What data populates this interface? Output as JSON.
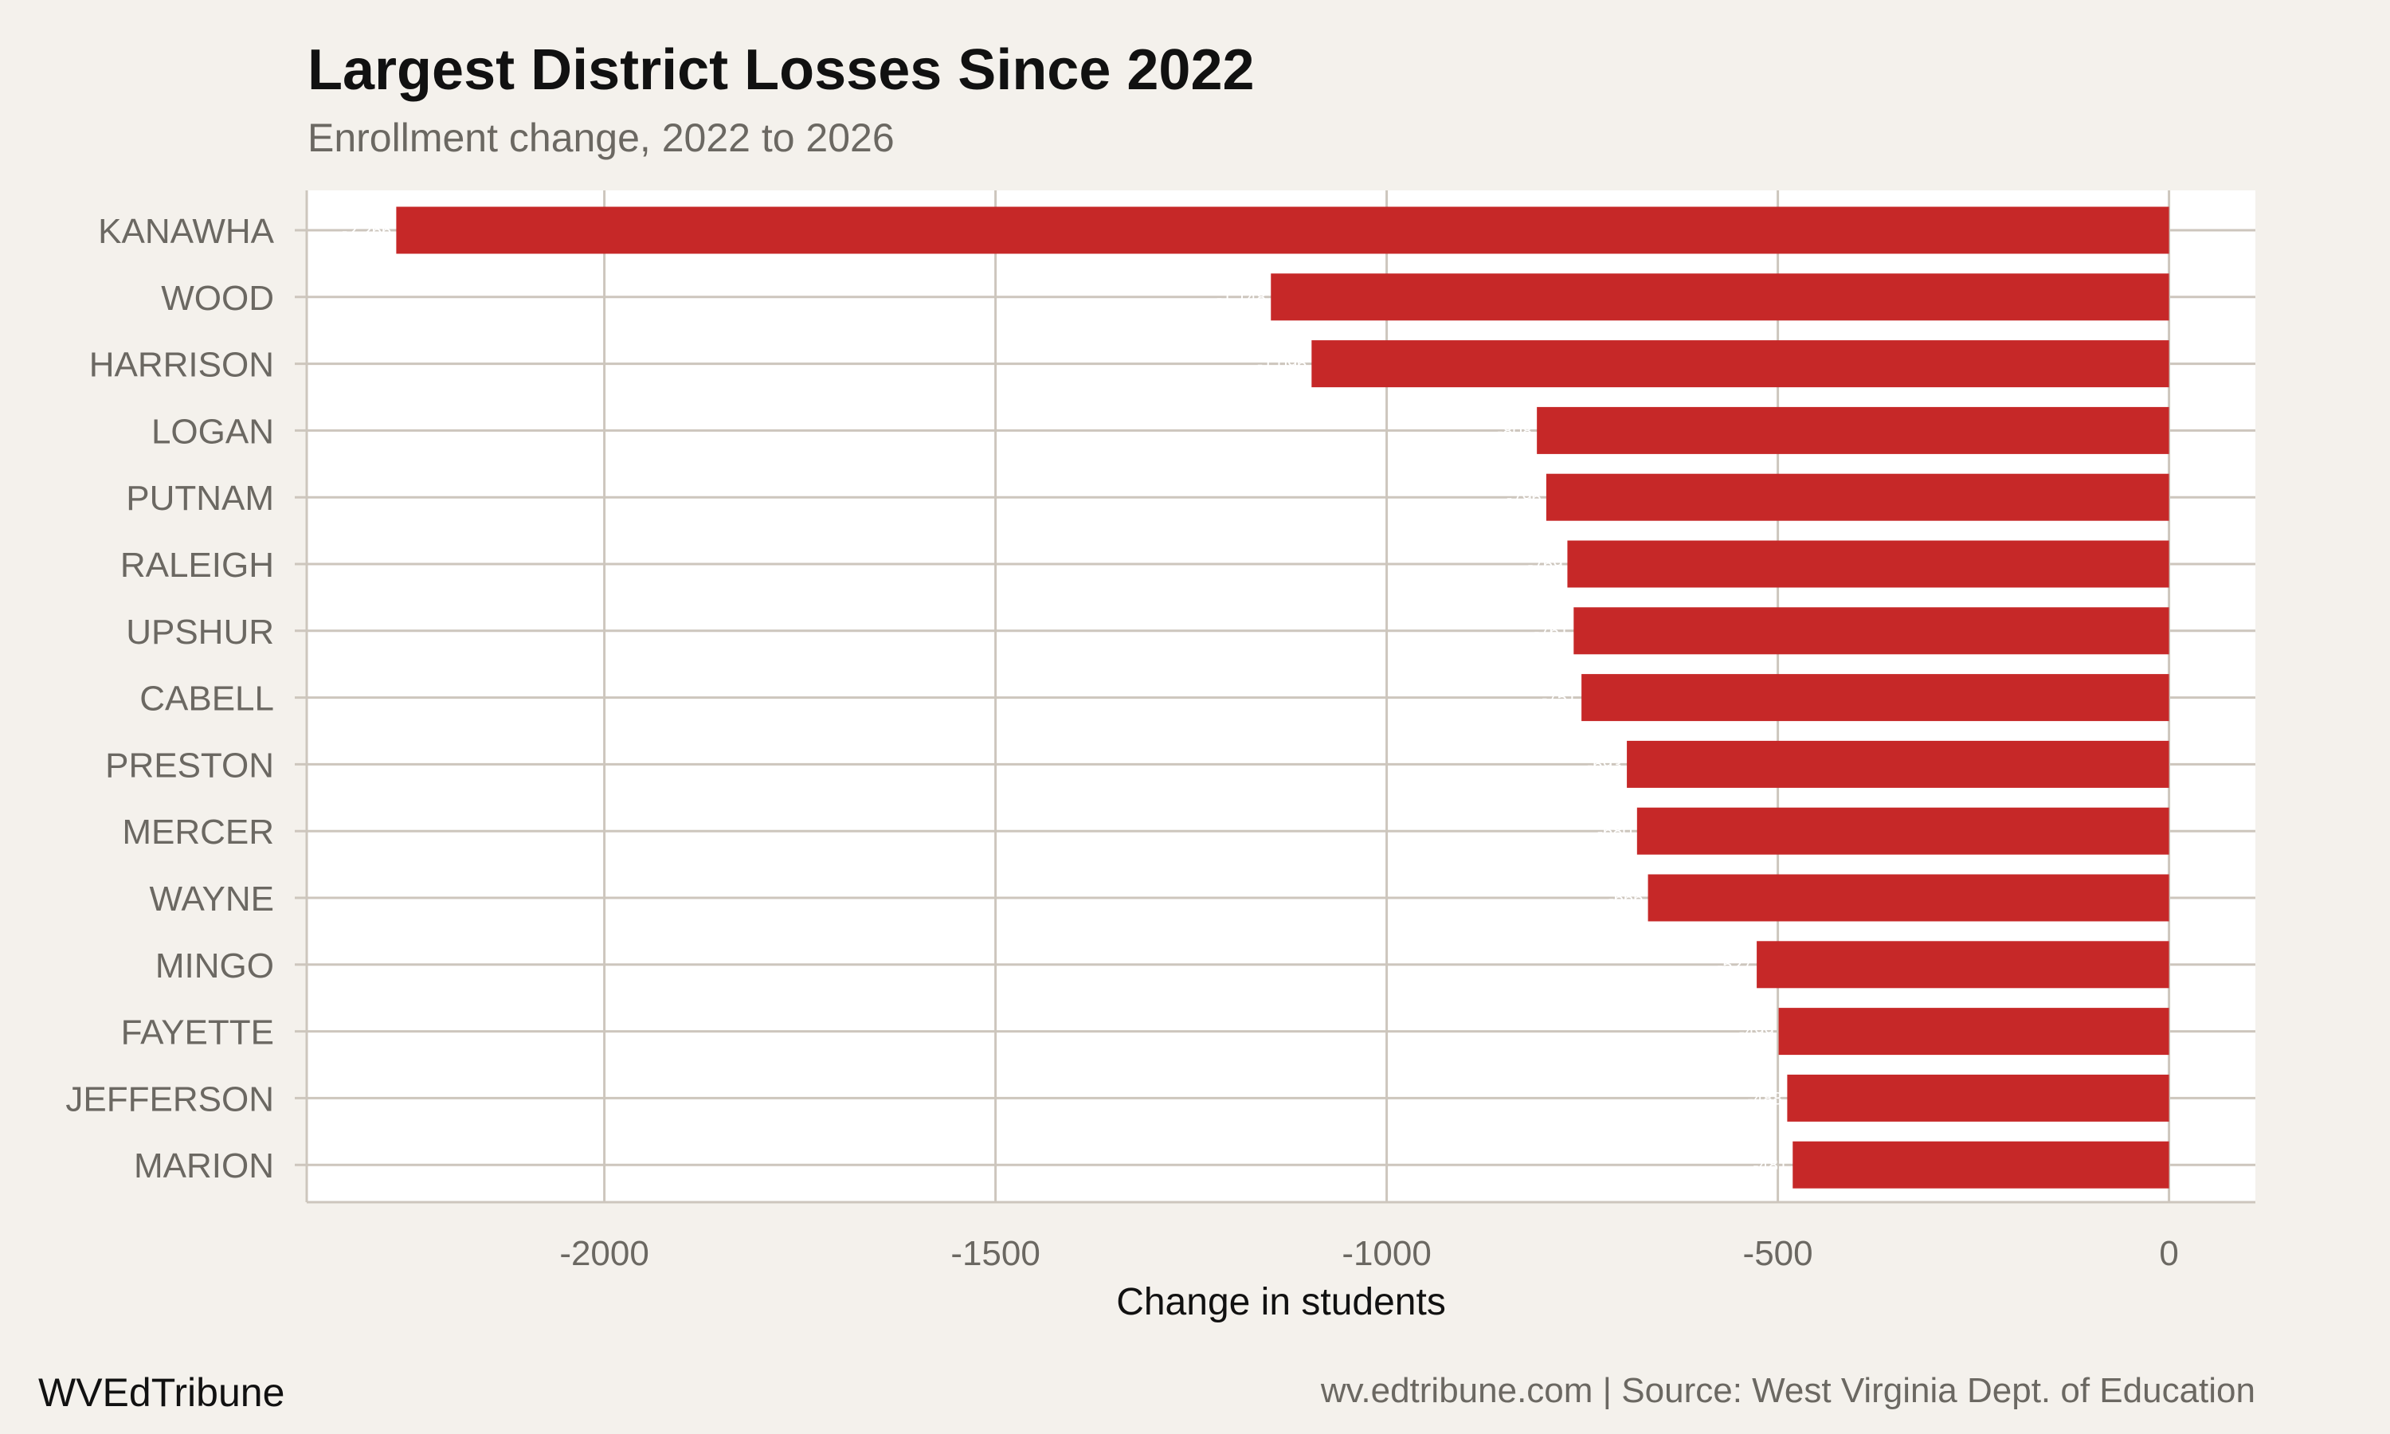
{
  "chart_data": {
    "type": "bar",
    "orientation": "horizontal",
    "title": "Largest District Losses Since 2022",
    "subtitle": "Enrollment change, 2022 to 2026",
    "xlabel": "Change in students",
    "ylabel": "",
    "categories": [
      "KANAWHA",
      "WOOD",
      "HARRISON",
      "LOGAN",
      "PUTNAM",
      "RALEIGH",
      "UPSHUR",
      "CABELL",
      "PRESTON",
      "MERCER",
      "WAYNE",
      "MINGO",
      "FAYETTE",
      "JEFFERSON",
      "MARION"
    ],
    "values": [
      -2266,
      -1148,
      -1096,
      -808,
      -796,
      -769,
      -761,
      -751,
      -693,
      -680,
      -666,
      -527,
      -499,
      -488,
      -481
    ],
    "xlim": [
      -2400,
      110
    ],
    "xticks": [
      -2000,
      -1500,
      -1000,
      -500,
      0
    ],
    "xtick_labels": [
      "-2000",
      "-1500",
      "-1000",
      "-500",
      "0"
    ],
    "grid": true,
    "bar_color": "#c62828",
    "data_label_color": "#ffffff"
  },
  "footer": {
    "brand": "WVEdTribune",
    "source": "wv.edtribune.com | Source: West Virginia Dept. of Education"
  },
  "colors": {
    "background": "#f4f1ec",
    "panel": "#ffffff",
    "grid": "#cdc6bd"
  }
}
